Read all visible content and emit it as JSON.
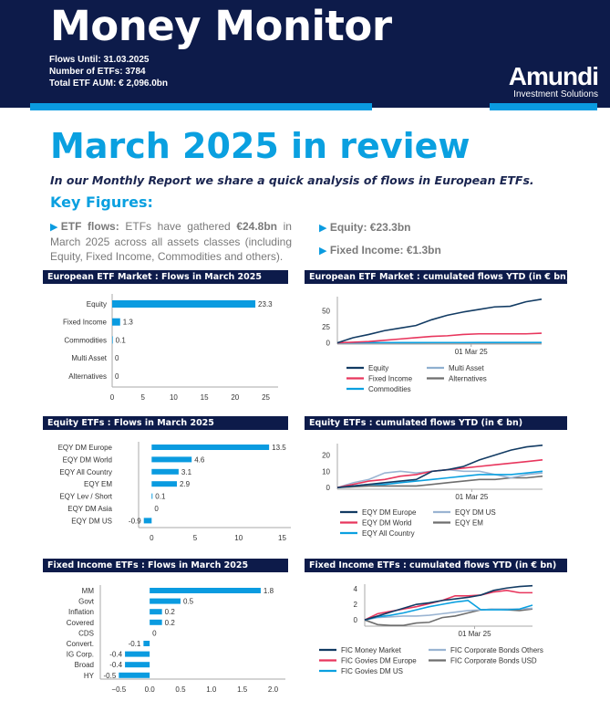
{
  "header": {
    "title": "Money Monitor",
    "flows_until": "Flows Until: 31.03.2025",
    "num_etfs": "Number of ETFs: 3784",
    "total_aum": "Total ETF AUM: € 2,096.0bn",
    "logo_name": "Amundi",
    "logo_sub": "Investment Solutions",
    "colors": {
      "navy": "#0d1b4a",
      "accent": "#0a9be0"
    }
  },
  "review": {
    "title": "March 2025 in review",
    "intro": "In our Monthly Report we share a quick analysis of flows in European ETFs.",
    "key_figures": "Key Figures:",
    "etf_flows_label": "ETF flows:",
    "etf_flows_text1": " ETFs have gathered ",
    "etf_flows_amount": "€24.8bn",
    "etf_flows_text2": " in March 2025 across all assets classes (including Equity, Fixed Income, Commodities and others).",
    "equity": "Equity: €23.3bn",
    "fixed_income": "Fixed Income: €1.3bn"
  },
  "chart_data": [
    {
      "id": "euro_bar",
      "type": "bar",
      "orientation": "horizontal",
      "title": "European ETF Market : Flows in March 2025",
      "categories": [
        "Equity",
        "Fixed Income",
        "Commodities",
        "Multi Asset",
        "Alternatives"
      ],
      "values": [
        23.3,
        1.3,
        0.1,
        0,
        0
      ],
      "xlim": [
        0,
        27
      ],
      "xticks": [
        0,
        5,
        10,
        15,
        20,
        25
      ],
      "color": "#0a9be0"
    },
    {
      "id": "euro_line",
      "type": "line",
      "title": "European ETF Market : cumulated flows  YTD (in € bn)",
      "x": [
        "2025-01-01",
        "2025-01-08",
        "2025-01-15",
        "2025-01-22",
        "2025-01-29",
        "2025-02-05",
        "2025-02-12",
        "2025-02-19",
        "2025-02-26",
        "2025-03-05",
        "2025-03-12",
        "2025-03-19",
        "2025-03-26",
        "2025-03-31"
      ],
      "xtick_label": "01 Mar 25",
      "ylim": [
        -2,
        72
      ],
      "yticks": [
        0,
        25,
        50
      ],
      "series": [
        {
          "name": "Equity",
          "color": "#123b63",
          "values": [
            0,
            8,
            13,
            19,
            23,
            27,
            36,
            43,
            48,
            52,
            56,
            57,
            64,
            68
          ]
        },
        {
          "name": "Fixed Income",
          "color": "#e8365d",
          "values": [
            0,
            1,
            2,
            4,
            6,
            8,
            10,
            11,
            13,
            14,
            14,
            14,
            14,
            15
          ]
        },
        {
          "name": "Commodities",
          "color": "#0aa0e0",
          "values": [
            0,
            0.2,
            0.3,
            0.3,
            0.4,
            0.4,
            0.5,
            0.5,
            0.5,
            0.6,
            0.6,
            0.6,
            0.6,
            0.6
          ]
        },
        {
          "name": "Multi Asset",
          "color": "#8fb0d0",
          "values": [
            0,
            0.1,
            0.2,
            0.2,
            0.3,
            0.3,
            0.3,
            0.3,
            0.4,
            0.4,
            0.4,
            0.4,
            0.4,
            0.4
          ]
        },
        {
          "name": "Alternatives",
          "color": "#6e6e6e",
          "values": [
            0,
            0,
            0,
            0,
            0,
            0,
            0,
            0,
            0,
            0,
            0,
            0,
            0,
            0
          ]
        }
      ]
    },
    {
      "id": "eq_bar",
      "type": "bar",
      "orientation": "horizontal",
      "title": "Equity ETFs : Flows in March 2025",
      "categories": [
        "EQY DM Europe",
        "EQY DM World",
        "EQY All Country",
        "EQY EM",
        "EQY Lev / Short",
        "EQY DM Asia",
        "EQY DM US"
      ],
      "values": [
        13.5,
        4.6,
        3.1,
        2.9,
        0.1,
        0,
        -0.9
      ],
      "xlim": [
        -1.5,
        16
      ],
      "xticks": [
        0,
        5,
        10,
        15
      ],
      "color": "#0a9be0"
    },
    {
      "id": "eq_line",
      "type": "line",
      "title": "Equity ETFs : cumulated flows YTD (in € bn)",
      "x": [
        "2025-01-01",
        "2025-01-08",
        "2025-01-15",
        "2025-01-22",
        "2025-01-29",
        "2025-02-05",
        "2025-02-12",
        "2025-02-19",
        "2025-02-26",
        "2025-03-05",
        "2025-03-12",
        "2025-03-19",
        "2025-03-26",
        "2025-03-31"
      ],
      "xtick_label": "01 Mar 25",
      "ylim": [
        -1,
        27
      ],
      "yticks": [
        0,
        10,
        20
      ],
      "series": [
        {
          "name": "EQY DM Europe",
          "color": "#123b63",
          "values": [
            0,
            1,
            2,
            3,
            4,
            5,
            10,
            11,
            13,
            17,
            20,
            23,
            25,
            26
          ]
        },
        {
          "name": "EQY DM World",
          "color": "#e8365d",
          "values": [
            0,
            2,
            4,
            5,
            7,
            8,
            10,
            11,
            12,
            13,
            14,
            15,
            16,
            17
          ]
        },
        {
          "name": "EQY All Country",
          "color": "#0aa0e0",
          "values": [
            0,
            1,
            2,
            2,
            3,
            4,
            5,
            6,
            7,
            8,
            8,
            8,
            9,
            10
          ]
        },
        {
          "name": "EQY DM US",
          "color": "#9ab4d2",
          "values": [
            0,
            3,
            5,
            9,
            10,
            9,
            10,
            11,
            10,
            10,
            8,
            6,
            8,
            9
          ]
        },
        {
          "name": "EQY EM",
          "color": "#6e6e6e",
          "values": [
            0,
            0.5,
            1,
            1,
            1,
            1,
            2,
            3,
            4,
            5,
            5,
            6,
            6,
            7
          ]
        }
      ]
    },
    {
      "id": "fi_bar",
      "type": "bar",
      "orientation": "horizontal",
      "title": "Fixed Income ETFs : Flows in March 2025",
      "categories": [
        "MM",
        "Govt",
        "Inflation",
        "Covered",
        "CDS",
        "Convert.",
        "IG Corp.",
        "Broad",
        "HY"
      ],
      "values": [
        1.8,
        0.5,
        0.2,
        0.2,
        0,
        -0.1,
        -0.4,
        -0.4,
        -0.5
      ],
      "xlim": [
        -0.8,
        2.2
      ],
      "xticks": [
        -0.5,
        0.0,
        0.5,
        1.0,
        1.5,
        2.0
      ],
      "xtick_labels": [
        "−0.5",
        "0.0",
        "0.5",
        "1.0",
        "1.5",
        "2.0"
      ],
      "color": "#0a9be0"
    },
    {
      "id": "fi_line",
      "type": "line",
      "title": "Fixed Income ETFs : cumulated flows YTD (in € bn)",
      "x": [
        "2025-01-01",
        "2025-01-08",
        "2025-01-15",
        "2025-01-22",
        "2025-01-29",
        "2025-02-05",
        "2025-02-12",
        "2025-02-19",
        "2025-02-26",
        "2025-03-05",
        "2025-03-12",
        "2025-03-19",
        "2025-03-26",
        "2025-03-31"
      ],
      "xtick_label": "01 Mar 25",
      "ylim": [
        -0.8,
        4.6
      ],
      "yticks": [
        0,
        2,
        4
      ],
      "series": [
        {
          "name": "FIC Money Market",
          "color": "#123b63",
          "values": [
            0,
            0.5,
            1,
            1.5,
            2,
            2.2,
            2.5,
            2.7,
            2.9,
            3.2,
            3.8,
            4.1,
            4.3,
            4.4
          ]
        },
        {
          "name": "FIC Govies DM Europe",
          "color": "#e8365d",
          "values": [
            0,
            0.8,
            1.1,
            1.4,
            1.7,
            2.1,
            2.5,
            3.1,
            3.1,
            3.2,
            3.6,
            3.8,
            3.5,
            3.5
          ]
        },
        {
          "name": "FIC Govies DM US",
          "color": "#0aa0e0",
          "values": [
            0,
            0.4,
            0.6,
            0.9,
            1.3,
            1.7,
            2.0,
            2.3,
            2.5,
            1.3,
            1.3,
            1.3,
            1.4,
            1.9
          ]
        },
        {
          "name": "FIC Corporate Bonds Others",
          "color": "#9ab4d2",
          "values": [
            0,
            0.3,
            0.4,
            0.5,
            0.5,
            0.6,
            0.8,
            1.0,
            1.2,
            1.3,
            1.4,
            1.4,
            1.4,
            1.5
          ]
        },
        {
          "name": "FIC Corporate Bonds USD",
          "color": "#6e6e6e",
          "values": [
            0,
            -0.6,
            -0.7,
            -0.7,
            -0.4,
            -0.3,
            0.3,
            0.5,
            0.9,
            1.3,
            1.4,
            1.3,
            1.2,
            1.4
          ]
        }
      ]
    }
  ]
}
